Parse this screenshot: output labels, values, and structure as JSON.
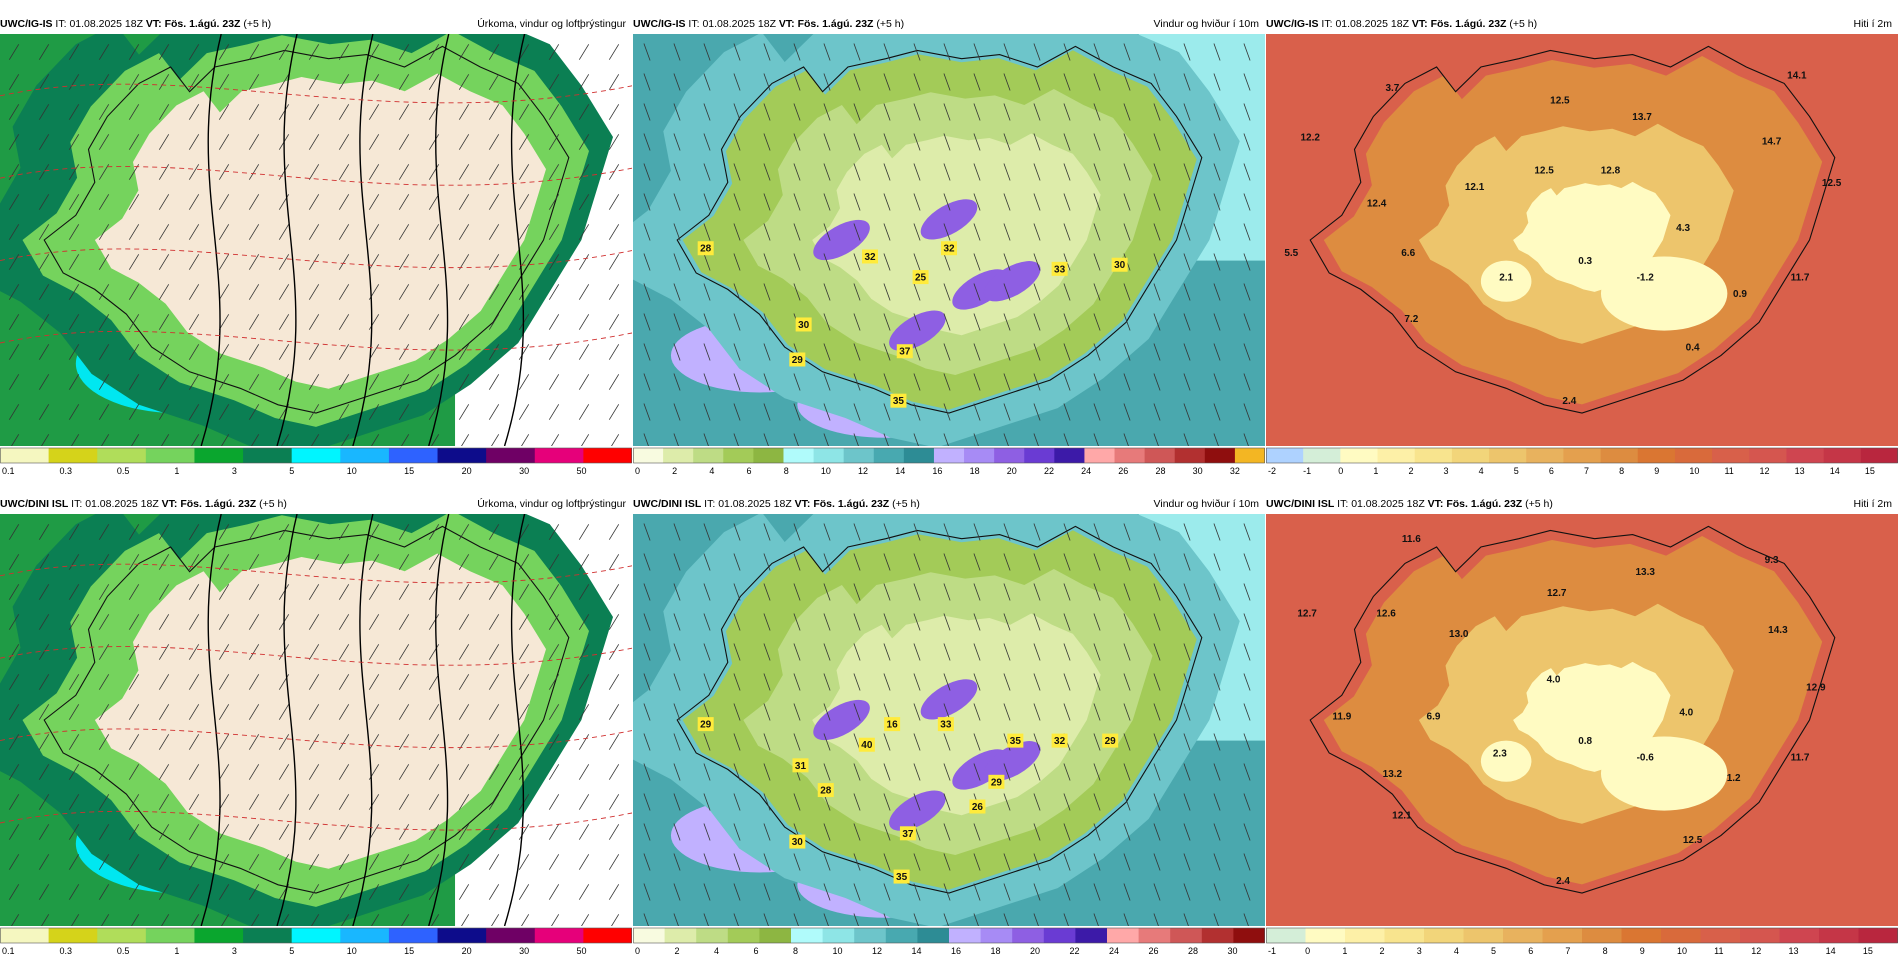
{
  "panels": [
    {
      "model": "UWC/IG-IS",
      "it_label": "IT:",
      "it": "01.08.2025 18Z",
      "vt_label": "VT:",
      "vt": "Fös. 1.ágú. 23Z",
      "lead": "(+5 h)",
      "title": "Úrkoma, vindur og loftþrýstingur",
      "type": "precip",
      "legend": {
        "colors": [
          "#f5f7c0",
          "#d5d31a",
          "#b0dd5a",
          "#75d35d",
          "#0aa62e",
          "#0b7f53",
          "#00f5ff",
          "#19b7ff",
          "#2e62ff",
          "#0d0c8b",
          "#6f0065",
          "#e6007a",
          "#ff0000"
        ],
        "labels": [
          "0.1",
          "0.3",
          "0.5",
          "1",
          "3",
          "5",
          "10",
          "15",
          "20",
          "30",
          "50"
        ]
      },
      "values": []
    },
    {
      "model": "UWC/IG-IS",
      "it_label": "IT:",
      "it": "01.08.2025 18Z",
      "vt_label": "VT:",
      "vt": "Fös. 1.ágú. 23Z",
      "lead": "(+5 h)",
      "title": "Vindur og hviður í 10m",
      "type": "wind",
      "legend": {
        "colors": [
          "#f8fbe0",
          "#ddecaa",
          "#bedc85",
          "#a3cb58",
          "#8db642",
          "#b0fbfb",
          "#8ee5e6",
          "#6dc5ca",
          "#48a9b0",
          "#2d8c95",
          "#c1b1ff",
          "#a78bf5",
          "#8e5fe3",
          "#6a3bd3",
          "#3c1aa8",
          "#ffa8a8",
          "#e77a7a",
          "#cf5757",
          "#b23030",
          "#8f0e0e",
          "#f3b623"
        ],
        "labels": [
          "0",
          "2",
          "4",
          "6",
          "8",
          "10",
          "12",
          "14",
          "16",
          "18",
          "20",
          "22",
          "24",
          "26",
          "28",
          "30",
          "32"
        ]
      },
      "values": [
        {
          "t": "28",
          "x": 0.115,
          "y": 0.52
        },
        {
          "t": "32",
          "x": 0.375,
          "y": 0.54
        },
        {
          "t": "25",
          "x": 0.455,
          "y": 0.59
        },
        {
          "t": "32",
          "x": 0.5,
          "y": 0.52
        },
        {
          "t": "33",
          "x": 0.675,
          "y": 0.57
        },
        {
          "t": "30",
          "x": 0.77,
          "y": 0.56
        },
        {
          "t": "30",
          "x": 0.27,
          "y": 0.705
        },
        {
          "t": "29",
          "x": 0.26,
          "y": 0.79
        },
        {
          "t": "37",
          "x": 0.43,
          "y": 0.77
        },
        {
          "t": "35",
          "x": 0.42,
          "y": 0.89
        }
      ]
    },
    {
      "model": "UWC/IG-IS",
      "it_label": "IT:",
      "it": "01.08.2025 18Z",
      "vt_label": "VT:",
      "vt": "Fös. 1.ágú. 23Z",
      "lead": "(+5 h)",
      "title": "Hiti í 2m",
      "type": "temp",
      "legend": {
        "colors": [
          "#aed2ff",
          "#d4eed8",
          "#fffbc2",
          "#fdf0a7",
          "#f8e48e",
          "#f2d57a",
          "#edc56c",
          "#e8b25e",
          "#e4a04e",
          "#dd8c40",
          "#da7632",
          "#d96a3b",
          "#d8604a",
          "#d5564f",
          "#cf4550",
          "#c53647",
          "#b9263e"
        ],
        "labels": [
          "-2",
          "-1",
          "0",
          "1",
          "2",
          "3",
          "4",
          "5",
          "6",
          "7",
          "8",
          "9",
          "10",
          "11",
          "12",
          "13",
          "14",
          "15"
        ]
      },
      "values": [
        {
          "t": "3.7",
          "x": 0.2,
          "y": 0.13
        },
        {
          "t": "12.5",
          "x": 0.465,
          "y": 0.16
        },
        {
          "t": "13.7",
          "x": 0.595,
          "y": 0.2
        },
        {
          "t": "14.1",
          "x": 0.84,
          "y": 0.1
        },
        {
          "t": "12.2",
          "x": 0.07,
          "y": 0.25
        },
        {
          "t": "14.7",
          "x": 0.8,
          "y": 0.26
        },
        {
          "t": "12.1",
          "x": 0.33,
          "y": 0.37
        },
        {
          "t": "12.5",
          "x": 0.44,
          "y": 0.33
        },
        {
          "t": "12.8",
          "x": 0.545,
          "y": 0.33
        },
        {
          "t": "12.5",
          "x": 0.895,
          "y": 0.36
        },
        {
          "t": "12.4",
          "x": 0.175,
          "y": 0.41
        },
        {
          "t": "4.3",
          "x": 0.66,
          "y": 0.47
        },
        {
          "t": "5.5",
          "x": 0.04,
          "y": 0.53
        },
        {
          "t": "6.6",
          "x": 0.225,
          "y": 0.53
        },
        {
          "t": "2.1",
          "x": 0.38,
          "y": 0.59
        },
        {
          "t": "0.3",
          "x": 0.505,
          "y": 0.55
        },
        {
          "t": "-1.2",
          "x": 0.6,
          "y": 0.59
        },
        {
          "t": "0.9",
          "x": 0.75,
          "y": 0.63
        },
        {
          "t": "11.7",
          "x": 0.845,
          "y": 0.59
        },
        {
          "t": "7.2",
          "x": 0.23,
          "y": 0.69
        },
        {
          "t": "0.4",
          "x": 0.675,
          "y": 0.76
        },
        {
          "t": "2.4",
          "x": 0.48,
          "y": 0.89
        }
      ]
    },
    {
      "model": "UWC/DINI ISL",
      "it_label": "IT:",
      "it": "01.08.2025 18Z",
      "vt_label": "VT:",
      "vt": "Fös. 1.ágú. 23Z",
      "lead": "(+5 h)",
      "title": "Úrkoma, vindur og loftþrýstingur",
      "type": "precip",
      "legend": {
        "colors": [
          "#f5f7c0",
          "#d5d31a",
          "#b0dd5a",
          "#75d35d",
          "#0aa62e",
          "#0b7f53",
          "#00f5ff",
          "#19b7ff",
          "#2e62ff",
          "#0d0c8b",
          "#6f0065",
          "#e6007a",
          "#ff0000"
        ],
        "labels": [
          "0.1",
          "0.3",
          "0.5",
          "1",
          "3",
          "5",
          "10",
          "15",
          "20",
          "30",
          "50"
        ]
      },
      "values": []
    },
    {
      "model": "UWC/DINI ISL",
      "it_label": "IT:",
      "it": "01.08.2025 18Z",
      "vt_label": "VT:",
      "vt": "Fös. 1.ágú. 23Z",
      "lead": "(+5 h)",
      "title": "Vindur og hviður í 10m",
      "type": "wind",
      "legend": {
        "colors": [
          "#f8fbe0",
          "#ddecaa",
          "#bedc85",
          "#a3cb58",
          "#8db642",
          "#b0fbfb",
          "#8ee5e6",
          "#6dc5ca",
          "#48a9b0",
          "#2d8c95",
          "#c1b1ff",
          "#a78bf5",
          "#8e5fe3",
          "#6a3bd3",
          "#3c1aa8",
          "#ffa8a8",
          "#e77a7a",
          "#cf5757",
          "#b23030",
          "#8f0e0e"
        ],
        "labels": [
          "0",
          "2",
          "4",
          "6",
          "8",
          "10",
          "12",
          "14",
          "16",
          "18",
          "20",
          "22",
          "24",
          "26",
          "28",
          "30"
        ]
      },
      "values": [
        {
          "t": "29",
          "x": 0.115,
          "y": 0.51
        },
        {
          "t": "16",
          "x": 0.41,
          "y": 0.51
        },
        {
          "t": "33",
          "x": 0.495,
          "y": 0.51
        },
        {
          "t": "40",
          "x": 0.37,
          "y": 0.56
        },
        {
          "t": "35",
          "x": 0.605,
          "y": 0.55
        },
        {
          "t": "32",
          "x": 0.675,
          "y": 0.55
        },
        {
          "t": "29",
          "x": 0.755,
          "y": 0.55
        },
        {
          "t": "31",
          "x": 0.265,
          "y": 0.61
        },
        {
          "t": "28",
          "x": 0.305,
          "y": 0.67
        },
        {
          "t": "29",
          "x": 0.575,
          "y": 0.65
        },
        {
          "t": "26",
          "x": 0.545,
          "y": 0.71
        },
        {
          "t": "30",
          "x": 0.26,
          "y": 0.795
        },
        {
          "t": "37",
          "x": 0.435,
          "y": 0.775
        },
        {
          "t": "35",
          "x": 0.425,
          "y": 0.88
        }
      ]
    },
    {
      "model": "UWC/DINI ISL",
      "it_label": "IT:",
      "it": "01.08.2025 18Z",
      "vt_label": "VT:",
      "vt": "Fös. 1.ágú. 23Z",
      "lead": "(+5 h)",
      "title": "Hiti í 2m",
      "type": "temp",
      "legend": {
        "colors": [
          "#d4eed8",
          "#fffbc2",
          "#fdf0a7",
          "#f8e48e",
          "#f2d57a",
          "#edc56c",
          "#e8b25e",
          "#e4a04e",
          "#dd8c40",
          "#da7632",
          "#d96a3b",
          "#d8604a",
          "#d5564f",
          "#cf4550",
          "#c53647",
          "#b9263e"
        ],
        "labels": [
          "-1",
          "0",
          "1",
          "2",
          "3",
          "4",
          "5",
          "6",
          "7",
          "8",
          "9",
          "10",
          "11",
          "12",
          "13",
          "14",
          "15"
        ]
      },
      "values": [
        {
          "t": "11.6",
          "x": 0.23,
          "y": 0.06
        },
        {
          "t": "13.3",
          "x": 0.6,
          "y": 0.14
        },
        {
          "t": "9.3",
          "x": 0.8,
          "y": 0.11
        },
        {
          "t": "12.7",
          "x": 0.065,
          "y": 0.24
        },
        {
          "t": "12.6",
          "x": 0.19,
          "y": 0.24
        },
        {
          "t": "12.7",
          "x": 0.46,
          "y": 0.19
        },
        {
          "t": "13.0",
          "x": 0.305,
          "y": 0.29
        },
        {
          "t": "14.3",
          "x": 0.81,
          "y": 0.28
        },
        {
          "t": "4.0",
          "x": 0.455,
          "y": 0.4
        },
        {
          "t": "12.9",
          "x": 0.87,
          "y": 0.42
        },
        {
          "t": "11.9",
          "x": 0.12,
          "y": 0.49
        },
        {
          "t": "6.9",
          "x": 0.265,
          "y": 0.49
        },
        {
          "t": "4.0",
          "x": 0.665,
          "y": 0.48
        },
        {
          "t": "2.3",
          "x": 0.37,
          "y": 0.58
        },
        {
          "t": "0.8",
          "x": 0.505,
          "y": 0.55
        },
        {
          "t": "-0.6",
          "x": 0.6,
          "y": 0.59
        },
        {
          "t": "1.2",
          "x": 0.74,
          "y": 0.64
        },
        {
          "t": "11.7",
          "x": 0.845,
          "y": 0.59
        },
        {
          "t": "13.2",
          "x": 0.2,
          "y": 0.63
        },
        {
          "t": "12.1",
          "x": 0.215,
          "y": 0.73
        },
        {
          "t": "12.5",
          "x": 0.675,
          "y": 0.79
        },
        {
          "t": "2.4",
          "x": 0.47,
          "y": 0.89
        }
      ]
    }
  ]
}
